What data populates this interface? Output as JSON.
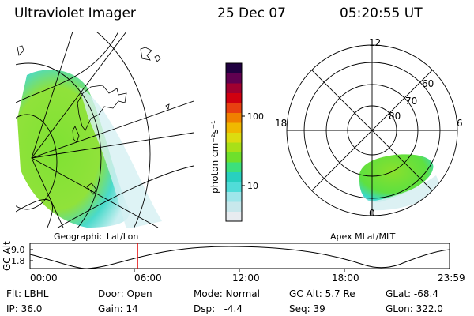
{
  "header": {
    "instrument": "Ultraviolet Imager",
    "date": "25 Dec 07",
    "time": "05:20:55 UT"
  },
  "colorbar": {
    "label": "photon cm⁻²s⁻¹",
    "ticks": [
      {
        "label": "100",
        "value": 100
      },
      {
        "label": "10",
        "value": 10
      }
    ],
    "colors": [
      "#e8ecf0",
      "#c8e8ec",
      "#9ee6ea",
      "#50dcd8",
      "#28d0c0",
      "#3ce07c",
      "#6ee02c",
      "#a8e018",
      "#dcdc10",
      "#f0b800",
      "#f08000",
      "#e84010",
      "#d00010",
      "#a00030",
      "#600050",
      "#200040"
    ]
  },
  "panels": {
    "geographic": {
      "label": "Geographic Lat/Lon"
    },
    "apex": {
      "label": "Apex  MLat/MLT",
      "mlt_labels": [
        "12",
        "18",
        "6",
        "0"
      ],
      "mlat_labels": [
        "60",
        "70",
        "80"
      ]
    }
  },
  "alt_plot": {
    "ylabel": "GC Alt",
    "yticks": [
      "9.0",
      "1.8"
    ],
    "xticks": [
      "00:00",
      "06:00",
      "12:00",
      "18:00",
      "23:59"
    ],
    "cursor_time": "05:20:55"
  },
  "info": {
    "filter": "Flt: LBHL",
    "ip": "IP: 36.0",
    "door": "Door: Open",
    "gain": "Gain: 14",
    "mode": "Mode: Normal",
    "dsp": "Dsp:   -4.4",
    "gc_alt": "GC Alt: 5.7 Re",
    "seq": "Seq: 39",
    "glat": "GLat: -68.4",
    "glon": "GLon: 322.0"
  }
}
